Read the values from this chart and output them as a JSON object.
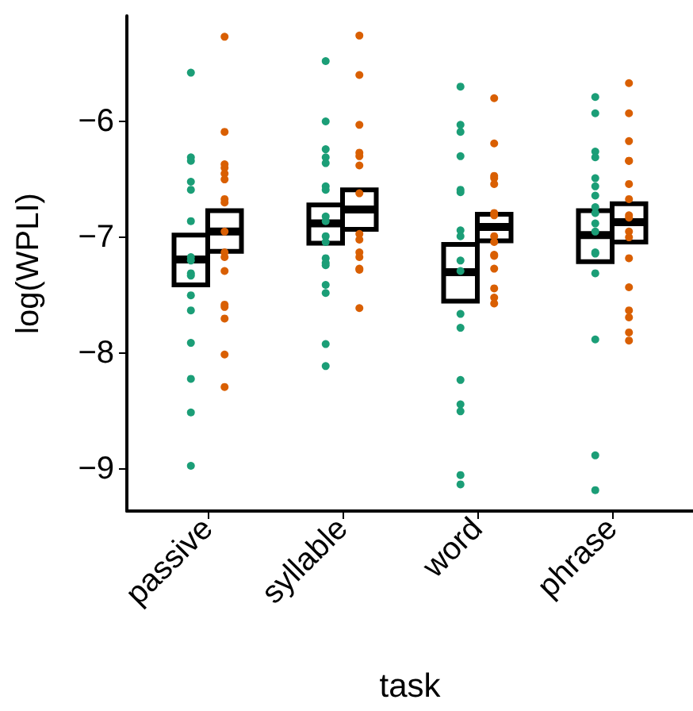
{
  "chart_data": {
    "type": "box",
    "xlabel": "task",
    "ylabel": "log(WPLI)",
    "categories": [
      "passive",
      "syllable",
      "word",
      "phrase"
    ],
    "ylim": [
      -9.36,
      -5.09
    ],
    "yticks": [
      -9,
      -8,
      -7,
      -6
    ],
    "grid": false,
    "marker": "circle",
    "series": [
      {
        "color": "#000000",
        "boxes": [
          {
            "low": -7.41,
            "q1": -7.41,
            "median": -7.19,
            "q3": -6.98,
            "high": -6.98
          },
          {
            "low": -7.05,
            "q1": -7.05,
            "median": -6.88,
            "q3": -6.72,
            "high": -6.72
          },
          {
            "low": -7.55,
            "q1": -7.55,
            "median": -7.3,
            "q3": -7.06,
            "high": -7.06
          },
          {
            "low": -7.21,
            "q1": -7.21,
            "median": -6.98,
            "q3": -6.77,
            "high": -6.77
          }
        ]
      },
      {
        "color": "#000000",
        "boxes": [
          {
            "low": -7.12,
            "q1": -7.12,
            "median": -6.95,
            "q3": -6.77,
            "high": -6.77
          },
          {
            "low": -6.93,
            "q1": -6.93,
            "median": -6.76,
            "q3": -6.59,
            "high": -6.59
          },
          {
            "low": -7.03,
            "q1": -7.03,
            "median": -6.91,
            "q3": -6.8,
            "high": -6.8
          },
          {
            "low": -7.04,
            "q1": -7.04,
            "median": -6.87,
            "q3": -6.71,
            "high": -6.71
          }
        ]
      },
      {
        "type": "scatter",
        "color": "#1b9e77",
        "x": [
          "passive",
          "passive",
          "passive",
          "passive",
          "passive",
          "passive",
          "passive",
          "passive",
          "passive",
          "passive",
          "passive",
          "passive",
          "passive",
          "passive",
          "passive",
          "passive",
          "syllable",
          "syllable",
          "syllable",
          "syllable",
          "syllable",
          "syllable",
          "syllable",
          "syllable",
          "syllable",
          "syllable",
          "syllable",
          "syllable",
          "syllable",
          "syllable",
          "syllable",
          "syllable",
          "syllable",
          "syllable",
          "word",
          "word",
          "word",
          "word",
          "word",
          "word",
          "word",
          "word",
          "word",
          "word",
          "word",
          "word",
          "word",
          "word",
          "word",
          "word",
          "word",
          "phrase",
          "phrase",
          "phrase",
          "phrase",
          "phrase",
          "phrase",
          "phrase",
          "phrase",
          "phrase",
          "phrase",
          "phrase",
          "phrase",
          "phrase",
          "phrase",
          "phrase",
          "phrase",
          "phrase"
        ],
        "values": [
          -5.58,
          -6.31,
          -6.34,
          -6.52,
          -6.59,
          -6.86,
          -7.17,
          -7.2,
          -7.31,
          -7.33,
          -7.5,
          -7.63,
          -7.91,
          -8.22,
          -8.51,
          -8.97,
          -5.48,
          -6.0,
          -6.24,
          -6.31,
          -6.36,
          -6.56,
          -6.59,
          -6.82,
          -6.86,
          -6.99,
          -7.04,
          -7.18,
          -7.22,
          -7.24,
          -7.41,
          -7.48,
          -7.92,
          -8.11,
          -5.7,
          -6.03,
          -6.09,
          -6.3,
          -6.61,
          -6.59,
          -6.94,
          -6.99,
          -7.2,
          -7.29,
          -7.66,
          -7.78,
          -8.23,
          -8.44,
          -8.5,
          -9.05,
          -9.13,
          -5.79,
          -5.93,
          -6.26,
          -6.31,
          -6.49,
          -6.56,
          -6.64,
          -6.74,
          -6.79,
          -6.88,
          -6.95,
          -7.13,
          -7.14,
          -7.31,
          -7.88,
          -8.88,
          -9.18
        ]
      },
      {
        "type": "scatter",
        "color": "#d95f02",
        "x": [
          "passive",
          "passive",
          "passive",
          "passive",
          "passive",
          "passive",
          "passive",
          "passive",
          "passive",
          "passive",
          "passive",
          "passive",
          "passive",
          "passive",
          "passive",
          "passive",
          "passive",
          "syllable",
          "syllable",
          "syllable",
          "syllable",
          "syllable",
          "syllable",
          "syllable",
          "syllable",
          "syllable",
          "syllable",
          "syllable",
          "syllable",
          "syllable",
          "syllable",
          "word",
          "word",
          "word",
          "word",
          "word",
          "word",
          "word",
          "word",
          "word",
          "word",
          "word",
          "word",
          "word",
          "word",
          "word",
          "phrase",
          "phrase",
          "phrase",
          "phrase",
          "phrase",
          "phrase",
          "phrase",
          "phrase",
          "phrase",
          "phrase",
          "phrase",
          "phrase",
          "phrase",
          "phrase",
          "phrase",
          "phrase",
          "phrase"
        ],
        "values": [
          -5.27,
          -6.09,
          -6.37,
          -6.4,
          -6.45,
          -6.5,
          -6.67,
          -6.7,
          -6.95,
          -7.13,
          -7.17,
          -7.29,
          -7.58,
          -7.6,
          -7.7,
          -8.01,
          -8.29,
          -5.26,
          -5.6,
          -6.03,
          -6.27,
          -6.3,
          -6.38,
          -6.62,
          -6.97,
          -7.02,
          -7.13,
          -7.17,
          -7.27,
          -7.28,
          -7.61,
          -5.8,
          -6.19,
          -6.47,
          -6.49,
          -6.54,
          -6.79,
          -6.81,
          -6.99,
          -7.04,
          -7.15,
          -7.16,
          -7.27,
          -7.44,
          -7.52,
          -7.57,
          -5.67,
          -5.93,
          -6.17,
          -6.34,
          -6.34,
          -6.54,
          -6.67,
          -6.81,
          -6.83,
          -6.95,
          -7.0,
          -7.18,
          -7.43,
          -7.63,
          -7.69,
          -7.82,
          -7.89
        ]
      }
    ]
  }
}
